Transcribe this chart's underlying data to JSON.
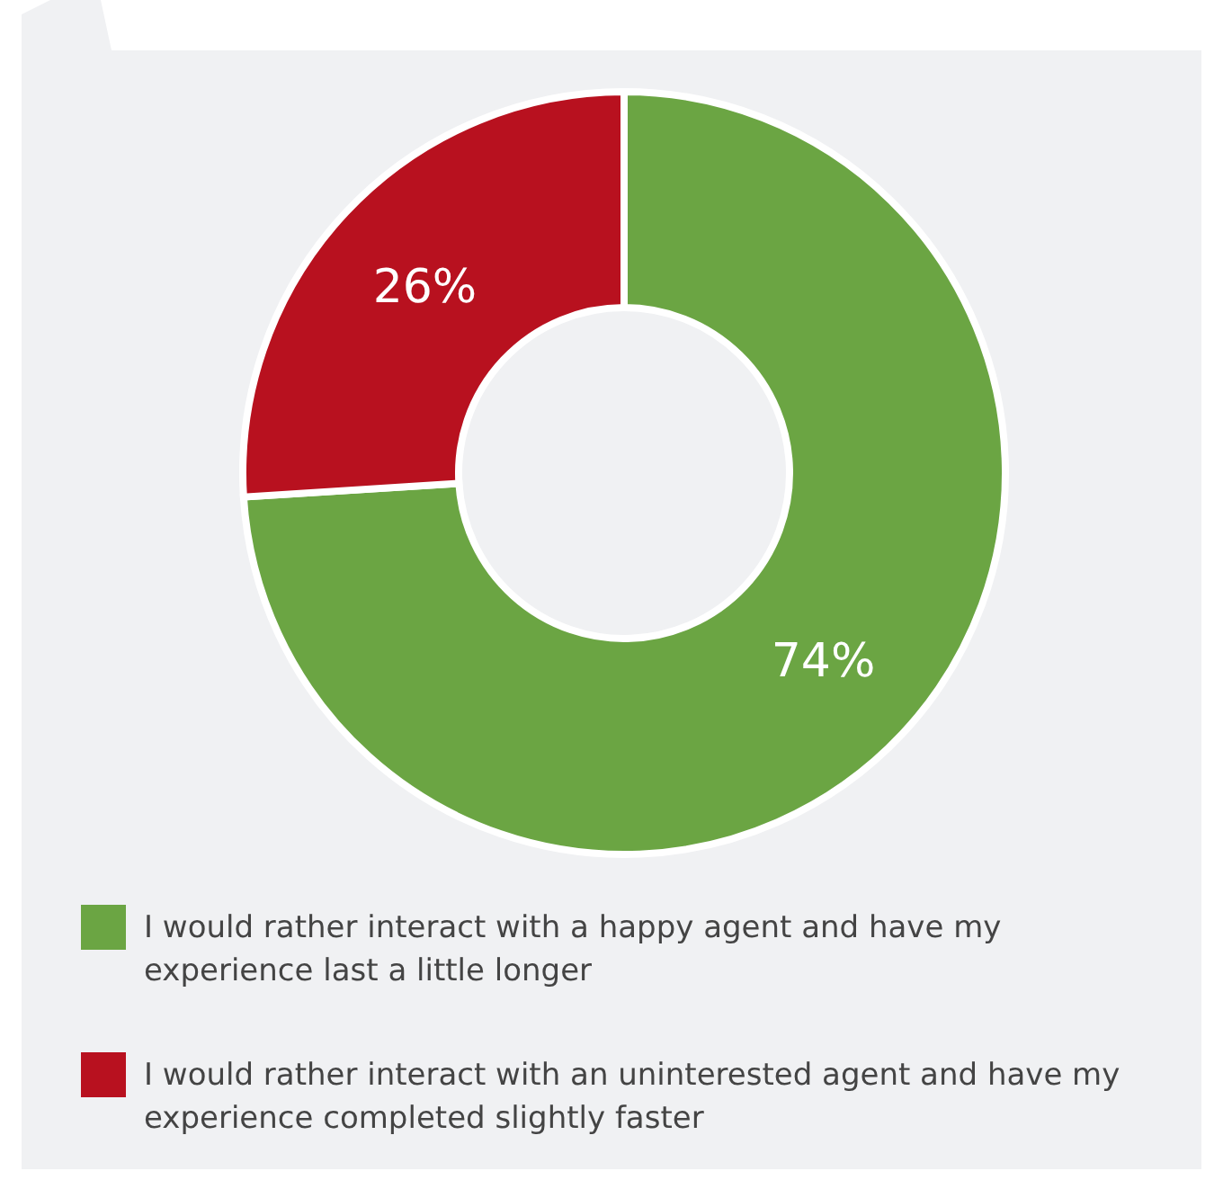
{
  "chart_data": {
    "type": "donut",
    "categories": [
      "I would rather interact with a happy agent and have my experience last a little longer",
      "I would rather interact with an uninterested agent and have my experience completed slightly faster"
    ],
    "values": [
      74,
      26
    ],
    "colors": [
      "#6ba543",
      "#b8111f"
    ],
    "value_labels": [
      "74%",
      "26%"
    ],
    "legend": "bottom"
  }
}
